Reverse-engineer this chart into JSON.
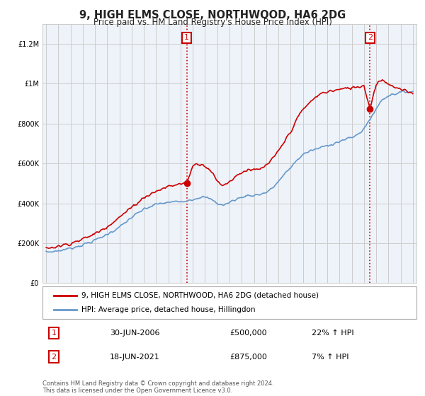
{
  "title": "9, HIGH ELMS CLOSE, NORTHWOOD, HA6 2DG",
  "subtitle": "Price paid vs. HM Land Registry's House Price Index (HPI)",
  "legend_label_red": "9, HIGH ELMS CLOSE, NORTHWOOD, HA6 2DG (detached house)",
  "legend_label_blue": "HPI: Average price, detached house, Hillingdon",
  "annotation1_label": "1",
  "annotation1_date": "30-JUN-2006",
  "annotation1_price": "£500,000",
  "annotation1_hpi": "22% ↑ HPI",
  "annotation1_year": 2006.5,
  "annotation1_value": 500000,
  "annotation2_label": "2",
  "annotation2_date": "18-JUN-2021",
  "annotation2_price": "£875,000",
  "annotation2_hpi": "7% ↑ HPI",
  "annotation2_year": 2021.5,
  "annotation2_value": 875000,
  "footer": "Contains HM Land Registry data © Crown copyright and database right 2024.\nThis data is licensed under the Open Government Licence v3.0.",
  "ylim": [
    0,
    1300000
  ],
  "yticks": [
    0,
    200000,
    400000,
    600000,
    800000,
    1000000,
    1200000
  ],
  "red_color": "#cc0000",
  "blue_color": "#6699cc",
  "vline_color": "#cc0000",
  "background_color": "#ffffff",
  "grid_color": "#cccccc",
  "chart_bg": "#eef3fa"
}
